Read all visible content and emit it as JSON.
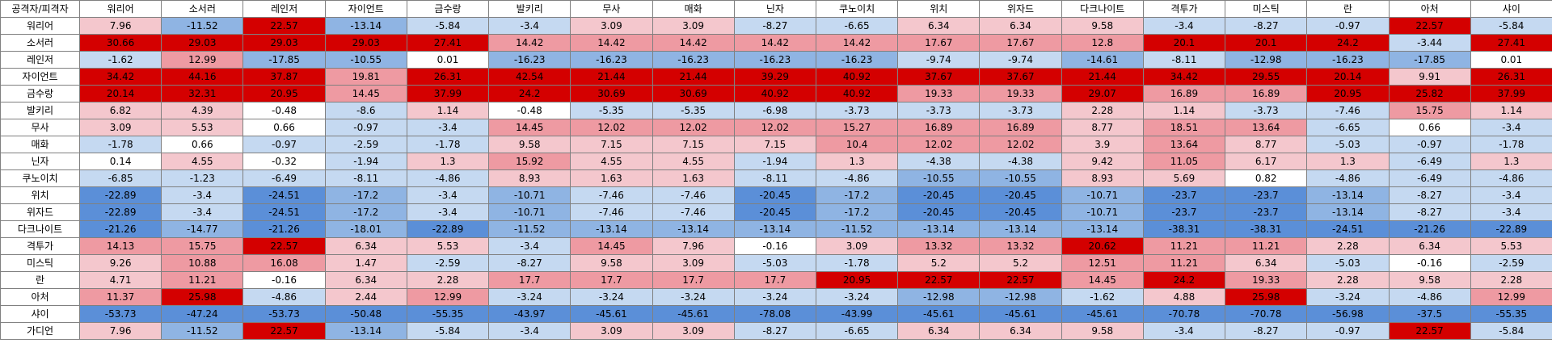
{
  "corner_label": "공격자/피격자",
  "columns": [
    "워리어",
    "소서러",
    "레인저",
    "자이언트",
    "금수랑",
    "발키리",
    "무사",
    "매화",
    "닌자",
    "쿠노이치",
    "위치",
    "위자드",
    "다크나이트",
    "격투가",
    "미스틱",
    "란",
    "아처",
    "샤이"
  ],
  "rows": [
    {
      "name": "워리어",
      "values": [
        "7.96",
        "-11.52",
        "22.57",
        "-13.14",
        "-5.84",
        "-3.4",
        "3.09",
        "3.09",
        "-8.27",
        "-6.65",
        "6.34",
        "6.34",
        "9.58",
        "-3.4",
        "-8.27",
        "-0.97",
        "22.57",
        "-5.84"
      ]
    },
    {
      "name": "소서러",
      "values": [
        "30.66",
        "29.03",
        "29.03",
        "29.03",
        "27.41",
        "14.42",
        "14.42",
        "14.42",
        "14.42",
        "14.42",
        "17.67",
        "17.67",
        "12.8",
        "20.1",
        "20.1",
        "24.2",
        "-3.44",
        "27.41"
      ]
    },
    {
      "name": "레인저",
      "values": [
        "-1.62",
        "12.99",
        "-17.85",
        "-10.55",
        "0.01",
        "-16.23",
        "-16.23",
        "-16.23",
        "-16.23",
        "-16.23",
        "-9.74",
        "-9.74",
        "-14.61",
        "-8.11",
        "-12.98",
        "-16.23",
        "-17.85",
        "0.01"
      ]
    },
    {
      "name": "자이언트",
      "values": [
        "34.42",
        "44.16",
        "37.87",
        "19.81",
        "26.31",
        "42.54",
        "21.44",
        "21.44",
        "39.29",
        "40.92",
        "37.67",
        "37.67",
        "21.44",
        "34.42",
        "29.55",
        "20.14",
        "9.91",
        "26.31"
      ]
    },
    {
      "name": "금수랑",
      "values": [
        "20.14",
        "32.31",
        "20.95",
        "14.45",
        "37.99",
        "24.2",
        "30.69",
        "30.69",
        "40.92",
        "40.92",
        "19.33",
        "19.33",
        "29.07",
        "16.89",
        "16.89",
        "20.95",
        "25.82",
        "37.99"
      ]
    },
    {
      "name": "발키리",
      "values": [
        "6.82",
        "4.39",
        "-0.48",
        "-8.6",
        "1.14",
        "-0.48",
        "-5.35",
        "-5.35",
        "-6.98",
        "-3.73",
        "-3.73",
        "-3.73",
        "2.28",
        "1.14",
        "-3.73",
        "-7.46",
        "15.75",
        "1.14"
      ]
    },
    {
      "name": "무사",
      "values": [
        "3.09",
        "5.53",
        "0.66",
        "-0.97",
        "-3.4",
        "14.45",
        "12.02",
        "12.02",
        "12.02",
        "15.27",
        "16.89",
        "16.89",
        "8.77",
        "18.51",
        "13.64",
        "-6.65",
        "0.66",
        "-3.4"
      ]
    },
    {
      "name": "매화",
      "values": [
        "-1.78",
        "0.66",
        "-0.97",
        "-2.59",
        "-1.78",
        "9.58",
        "7.15",
        "7.15",
        "7.15",
        "10.4",
        "12.02",
        "12.02",
        "3.9",
        "13.64",
        "8.77",
        "-5.03",
        "-0.97",
        "-1.78"
      ]
    },
    {
      "name": "닌자",
      "values": [
        "0.14",
        "4.55",
        "-0.32",
        "-1.94",
        "1.3",
        "15.92",
        "4.55",
        "4.55",
        "-1.94",
        "1.3",
        "-4.38",
        "-4.38",
        "9.42",
        "11.05",
        "6.17",
        "1.3",
        "-6.49",
        "1.3"
      ]
    },
    {
      "name": "쿠노이치",
      "values": [
        "-6.85",
        "-1.23",
        "-6.49",
        "-8.11",
        "-4.86",
        "8.93",
        "1.63",
        "1.63",
        "-8.11",
        "-4.86",
        "-10.55",
        "-10.55",
        "8.93",
        "5.69",
        "0.82",
        "-4.86",
        "-6.49",
        "-4.86"
      ]
    },
    {
      "name": "위치",
      "values": [
        "-22.89",
        "-3.4",
        "-24.51",
        "-17.2",
        "-3.4",
        "-10.71",
        "-7.46",
        "-7.46",
        "-20.45",
        "-17.2",
        "-20.45",
        "-20.45",
        "-10.71",
        "-23.7",
        "-23.7",
        "-13.14",
        "-8.27",
        "-3.4"
      ]
    },
    {
      "name": "위자드",
      "values": [
        "-22.89",
        "-3.4",
        "-24.51",
        "-17.2",
        "-3.4",
        "-10.71",
        "-7.46",
        "-7.46",
        "-20.45",
        "-17.2",
        "-20.45",
        "-20.45",
        "-10.71",
        "-23.7",
        "-23.7",
        "-13.14",
        "-8.27",
        "-3.4"
      ]
    },
    {
      "name": "다크나이트",
      "values": [
        "-21.26",
        "-14.77",
        "-21.26",
        "-18.01",
        "-22.89",
        "-11.52",
        "-13.14",
        "-13.14",
        "-13.14",
        "-11.52",
        "-13.14",
        "-13.14",
        "-13.14",
        "-38.31",
        "-38.31",
        "-24.51",
        "-21.26",
        "-22.89"
      ]
    },
    {
      "name": "격투가",
      "values": [
        "14.13",
        "15.75",
        "22.57",
        "6.34",
        "5.53",
        "-3.4",
        "14.45",
        "7.96",
        "-0.16",
        "3.09",
        "13.32",
        "13.32",
        "20.62",
        "11.21",
        "11.21",
        "2.28",
        "6.34",
        "5.53"
      ]
    },
    {
      "name": "미스틱",
      "values": [
        "9.26",
        "10.88",
        "16.08",
        "1.47",
        "-2.59",
        "-8.27",
        "9.58",
        "3.09",
        "-5.03",
        "-1.78",
        "5.2",
        "5.2",
        "12.51",
        "11.21",
        "6.34",
        "-5.03",
        "-0.16",
        "-2.59"
      ]
    },
    {
      "name": "란",
      "values": [
        "4.71",
        "11.21",
        "-0.16",
        "6.34",
        "2.28",
        "17.7",
        "17.7",
        "17.7",
        "17.7",
        "20.95",
        "22.57",
        "22.57",
        "14.45",
        "24.2",
        "19.33",
        "2.28",
        "9.58",
        "2.28"
      ]
    },
    {
      "name": "아처",
      "values": [
        "11.37",
        "25.98",
        "-4.86",
        "2.44",
        "12.99",
        "-3.24",
        "-3.24",
        "-3.24",
        "-3.24",
        "-3.24",
        "-12.98",
        "-12.98",
        "-1.62",
        "4.88",
        "25.98",
        "-3.24",
        "-4.86",
        "12.99"
      ]
    },
    {
      "name": "샤이",
      "values": [
        "-53.73",
        "-47.24",
        "-53.73",
        "-50.48",
        "-55.35",
        "-43.97",
        "-45.61",
        "-45.61",
        "-78.08",
        "-43.99",
        "-45.61",
        "-45.61",
        "-45.61",
        "-70.78",
        "-70.78",
        "-56.98",
        "-37.5",
        "-55.35"
      ]
    },
    {
      "name": "가디언",
      "values": [
        "7.96",
        "-11.52",
        "22.57",
        "-13.14",
        "-5.84",
        "-3.4",
        "3.09",
        "3.09",
        "-8.27",
        "-6.65",
        "6.34",
        "6.34",
        "9.58",
        "-3.4",
        "-8.27",
        "-0.97",
        "22.57",
        "-5.84"
      ]
    }
  ],
  "colors": {
    "neg_strong": "#5b8fd8",
    "neg_mid": "#8fb4e3",
    "neg_light": "#c5d9f1",
    "neutral": "#ffffff",
    "pos_light": "#f4c7cd",
    "pos_mid": "#ee9aa2",
    "pos_strong": "#d40000",
    "header_bg": "#ffffff",
    "grid": "#808080"
  }
}
